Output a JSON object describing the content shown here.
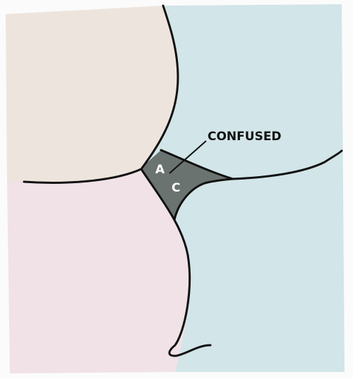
{
  "diagram": {
    "callout_label": "CONFUSED",
    "overlap_letters": [
      "A",
      "C"
    ],
    "colors": {
      "paper": "#fbfbfb",
      "top_left_region": "#ede5dd",
      "bottom_left_region": "#f0e2e6",
      "right_region": "#d2e5e8",
      "overlap_region": "#6b7371",
      "overlap_text": "#ffffff",
      "outline": "#111111"
    }
  }
}
